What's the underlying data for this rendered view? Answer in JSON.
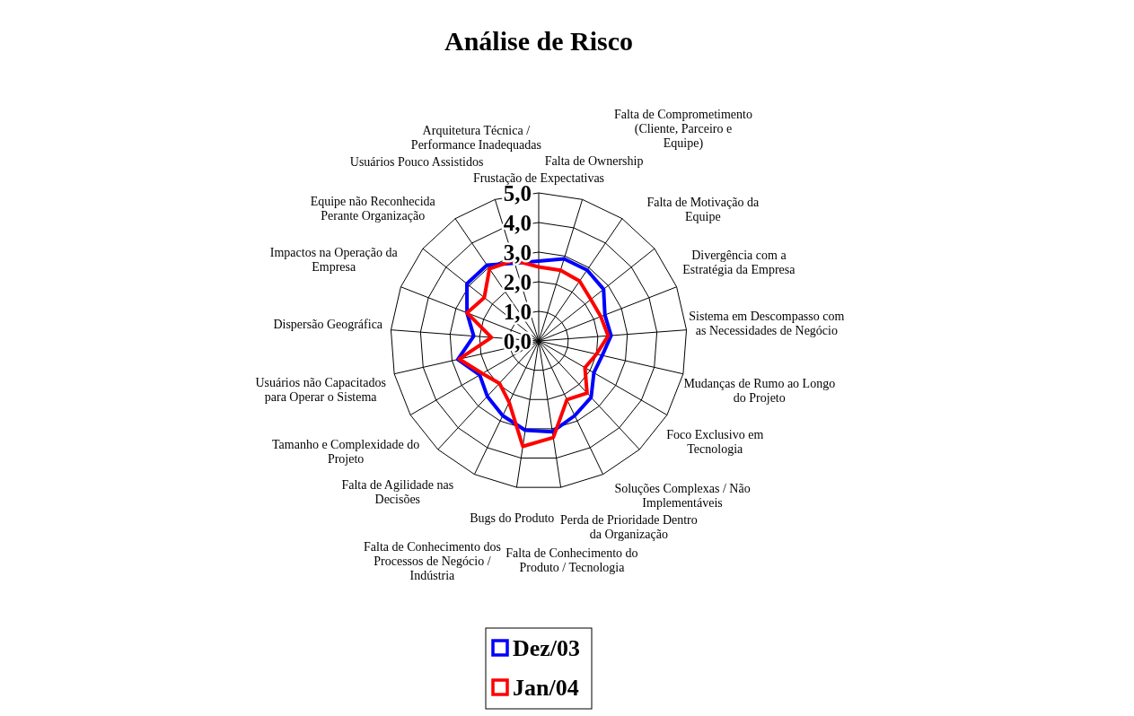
{
  "chart_data": {
    "type": "radar",
    "title": "Análise de Risco",
    "categories": [
      "Frustação de Expectativas",
      "Falta de Ownership",
      "Falta de Comprometimento (Cliente, Parceiro e Equipe)",
      "Falta de Motivação da Equipe",
      "Divergência com a Estratégia da Empresa",
      "Sistema em Descompasso com as Necessidades de Negócio",
      "Mudanças de Rumo ao Longo do Projeto",
      "Foco Exclusivo em Tecnologia",
      "Soluções Complexas / Não Implementáveis",
      "Perda de Prioridade Dentro da Organização",
      "Falta de Conhecimento do Produto / Tecnologia",
      "Bugs do Produto",
      "Falta de Conhecimento dos Processos de Negócio / Indústria",
      "Falta de Agilidade nas Decisões",
      "Tamanho e Complexidade do Projeto",
      "Usuários não Capacitados para Operar o Sistema",
      "Dispersão Geográfica",
      "Impactos na Operação da Empresa",
      "Equipe não Reconhecida Perante Organização",
      "Usuários Pouco Assistidos",
      "Arquitetura Técnica / Performance Inadequadas"
    ],
    "series": [
      {
        "name": "Dez/03",
        "color": "#0000ff",
        "values": [
          2.7,
          2.9,
          2.9,
          2.8,
          2.4,
          2.45,
          2.2,
          2.15,
          2.6,
          2.8,
          3.1,
          3.05,
          2.8,
          2.55,
          2.3,
          2.8,
          2.2,
          2.6,
          3.1,
          3.1,
          2.75
        ]
      },
      {
        "name": "Jan/04",
        "color": "#ff0000",
        "values": [
          2.5,
          2.5,
          2.45,
          2.25,
          2.25,
          2.35,
          2.0,
          1.8,
          2.4,
          2.2,
          3.3,
          3.6,
          2.3,
          1.95,
          2.2,
          2.75,
          1.6,
          2.6,
          2.35,
          2.95,
          2.85
        ]
      }
    ],
    "ylim": [
      0,
      5
    ],
    "yticks": [
      {
        "value": 0,
        "label": "0,0"
      },
      {
        "value": 1,
        "label": "1,0"
      },
      {
        "value": 2,
        "label": "2,0"
      },
      {
        "value": 3,
        "label": "3,0"
      },
      {
        "value": 4,
        "label": "4,0"
      },
      {
        "value": 5,
        "label": "5,0"
      }
    ],
    "grid": true,
    "legend": "bottom"
  }
}
